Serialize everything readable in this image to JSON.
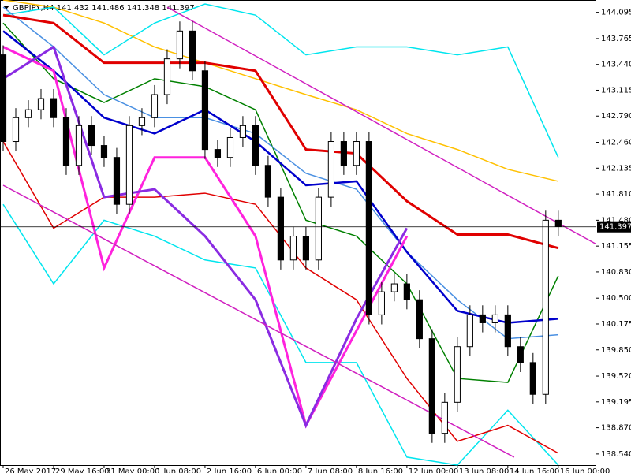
{
  "chart_data": {
    "type": "candlestick",
    "title": "GBPJPY,H4 141.432 141.486 141.348 141.397",
    "xlim": [
      -0.5,
      93.9
    ],
    "ylim": [
      138.4,
      144.25
    ],
    "yticks": [
      144.095,
      143.765,
      {
        "value": 143.44,
        "label": "143.440"
      },
      143.115,
      {
        "value": 142.79,
        "label": "142.790"
      },
      {
        "value": 142.46,
        "label": "142.460"
      },
      142.135,
      {
        "value": 141.81,
        "label": "141.810"
      },
      {
        "value": 141.48,
        "label": "141.480"
      },
      141.155,
      {
        "value": 140.83,
        "label": "140.830"
      },
      {
        "value": 140.5,
        "label": "140.500"
      },
      140.175,
      {
        "value": 139.85,
        "label": "139.850"
      },
      {
        "value": 139.52,
        "label": "139.520"
      },
      139.195,
      {
        "value": 138.87,
        "label": "138.870"
      },
      {
        "value": 138.54,
        "label": "138.540"
      }
    ],
    "xticks": [
      {
        "value": 0,
        "label": "26 May 2017"
      },
      {
        "value": 8,
        "label": "29 May 16:00"
      },
      {
        "value": 16,
        "label": "31 May 00:00"
      },
      {
        "value": 24,
        "label": "1 Jun 08:00"
      },
      {
        "value": 32,
        "label": "2 Jun 16:00"
      },
      {
        "value": 40,
        "label": "6 Jun 00:00"
      },
      {
        "value": 48,
        "label": "7 Jun 08:00"
      },
      {
        "value": 56,
        "label": "8 Jun 16:00"
      },
      {
        "value": 64,
        "label": "12 Jun 00:00"
      },
      {
        "value": 72,
        "label": "13 Jun 08:00"
      },
      {
        "value": 80,
        "label": "14 Jun 16:00"
      },
      {
        "value": 88,
        "label": "16 Jun 00:00"
      }
    ],
    "last_price": 141.397,
    "candles": {
      "x": [
        0,
        2,
        4,
        6,
        8,
        10,
        12,
        14,
        16,
        18,
        20,
        22,
        24,
        26,
        28,
        30,
        32,
        34,
        36,
        38,
        40,
        42,
        44,
        46,
        48,
        50,
        52,
        54,
        56,
        58,
        60,
        62,
        64,
        66,
        68,
        70,
        72,
        74,
        76,
        78,
        80,
        82,
        84,
        86,
        88
      ],
      "open": [
        143.56,
        142.47,
        142.77,
        142.87,
        143.01,
        142.77,
        142.17,
        142.67,
        142.42,
        142.27,
        141.68,
        142.67,
        142.77,
        143.06,
        143.51,
        143.86,
        143.36,
        142.37,
        142.27,
        142.52,
        142.67,
        142.17,
        141.77,
        140.98,
        141.28,
        140.98,
        141.77,
        142.47,
        142.17,
        142.47,
        140.29,
        140.58,
        140.68,
        140.48,
        139.99,
        138.8,
        139.19,
        139.89,
        140.29,
        140.19,
        140.29,
        139.89,
        139.69,
        139.29,
        141.48
      ],
      "high": [
        143.68,
        142.89,
        142.99,
        143.13,
        143.13,
        142.89,
        142.79,
        142.79,
        142.54,
        142.39,
        142.79,
        142.89,
        143.18,
        143.63,
        143.98,
        143.98,
        143.48,
        142.49,
        142.64,
        142.79,
        142.79,
        142.29,
        141.89,
        141.4,
        141.4,
        141.89,
        142.59,
        142.59,
        142.59,
        142.59,
        140.7,
        140.8,
        140.8,
        140.6,
        140.11,
        139.31,
        140.01,
        140.41,
        140.41,
        140.41,
        140.41,
        140.01,
        139.81,
        141.6,
        141.6
      ],
      "low": [
        142.35,
        142.35,
        142.65,
        142.75,
        142.65,
        142.05,
        142.05,
        142.3,
        142.15,
        141.56,
        141.56,
        142.55,
        142.65,
        142.94,
        143.39,
        143.24,
        142.25,
        142.15,
        142.15,
        142.4,
        142.05,
        141.65,
        140.86,
        140.86,
        140.86,
        140.86,
        141.65,
        142.05,
        142.05,
        140.17,
        140.17,
        140.46,
        140.36,
        139.87,
        138.68,
        138.68,
        139.07,
        139.77,
        140.07,
        140.07,
        139.77,
        139.57,
        139.17,
        139.17,
        141.28
      ],
      "close": [
        142.47,
        142.77,
        142.87,
        143.01,
        142.77,
        142.17,
        142.67,
        142.42,
        142.27,
        141.68,
        142.67,
        142.77,
        143.06,
        143.51,
        143.86,
        143.36,
        142.37,
        142.27,
        142.52,
        142.67,
        142.17,
        141.77,
        140.98,
        141.28,
        140.98,
        141.77,
        142.47,
        142.17,
        142.47,
        140.29,
        140.58,
        140.68,
        140.48,
        139.99,
        138.8,
        139.19,
        139.89,
        140.29,
        140.19,
        140.29,
        139.89,
        139.69,
        139.29,
        141.48,
        141.4
      ]
    },
    "lines": [
      {
        "color": "#ffc000",
        "width": 1.5,
        "x": [
          0,
          8,
          16,
          24,
          32,
          40,
          48,
          56,
          64,
          72,
          80,
          88
        ],
        "values": [
          144.25,
          144.16,
          143.96,
          143.66,
          143.46,
          143.26,
          143.06,
          142.87,
          142.57,
          142.37,
          142.12,
          141.97
        ]
      },
      {
        "color": "#00e5ee",
        "width": 1.5,
        "x": [
          0,
          8,
          16,
          24,
          32,
          40,
          48,
          56,
          64,
          72,
          80,
          88
        ],
        "values": [
          144.06,
          144.16,
          143.56,
          143.96,
          144.2,
          144.06,
          143.56,
          143.66,
          143.66,
          143.56,
          143.66,
          142.27
        ]
      },
      {
        "color": "#00e5ee",
        "width": 1.5,
        "x": [
          0,
          8,
          16,
          24,
          32,
          40,
          48,
          56,
          64,
          72,
          80,
          88
        ],
        "values": [
          141.68,
          140.68,
          141.48,
          141.28,
          140.98,
          140.88,
          139.69,
          139.69,
          138.5,
          138.4,
          139.09,
          138.4
        ]
      },
      {
        "color": "#e00000",
        "width": 1.5,
        "x": [
          0,
          8,
          16,
          24,
          32,
          40,
          48,
          56,
          64,
          72,
          80,
          88
        ],
        "values": [
          142.47,
          141.38,
          141.77,
          141.77,
          141.82,
          141.68,
          140.88,
          140.48,
          139.49,
          138.7,
          138.9,
          138.55
        ]
      },
      {
        "color": "#008000",
        "width": 1.5,
        "x": [
          0,
          8,
          16,
          24,
          32,
          40,
          48,
          56,
          64,
          72,
          80,
          88
        ],
        "values": [
          143.96,
          143.26,
          142.96,
          143.26,
          143.16,
          142.87,
          141.48,
          141.28,
          140.68,
          139.49,
          139.44,
          140.78
        ]
      },
      {
        "color": "#4a90e2",
        "width": 1.5,
        "x": [
          0,
          8,
          16,
          24,
          32,
          40,
          48,
          56,
          64,
          72,
          80,
          88
        ],
        "values": [
          144.16,
          143.66,
          143.06,
          142.77,
          142.77,
          142.57,
          142.07,
          141.87,
          141.08,
          140.48,
          139.99,
          140.04
        ]
      },
      {
        "color": "#0000cc",
        "width": 2.5,
        "x": [
          0,
          8,
          16,
          24,
          32,
          40,
          48,
          56,
          64,
          72,
          80,
          88
        ],
        "values": [
          143.86,
          143.36,
          142.77,
          142.57,
          142.87,
          142.47,
          141.92,
          141.97,
          141.08,
          140.34,
          140.19,
          140.24
        ]
      },
      {
        "color": "#e00000",
        "width": 3,
        "x": [
          0,
          8,
          16,
          24,
          32,
          40,
          48,
          56,
          64,
          72,
          80,
          88
        ],
        "values": [
          144.06,
          143.96,
          143.46,
          143.46,
          143.46,
          143.36,
          142.37,
          142.32,
          141.72,
          141.3,
          141.3,
          141.13
        ]
      },
      {
        "color": "#ff22dd",
        "width": 3,
        "x": [
          0,
          8,
          16,
          24,
          32,
          40,
          48,
          56,
          64
        ],
        "values": [
          143.66,
          143.36,
          140.88,
          142.27,
          142.27,
          141.28,
          138.9,
          140.09,
          141.28
        ]
      },
      {
        "color": "#8a2be2",
        "width": 3,
        "x": [
          0,
          8,
          16,
          24,
          32,
          40,
          48,
          56,
          64
        ],
        "values": [
          143.26,
          143.66,
          141.77,
          141.87,
          141.28,
          140.48,
          138.9,
          140.24,
          141.38
        ]
      },
      {
        "color": "#d020c0",
        "width": 1.5,
        "x": [
          26,
          94
        ],
        "values": [
          144.16,
          141.18
        ]
      },
      {
        "color": "#d020c0",
        "width": 1.5,
        "x": [
          0,
          81
        ],
        "values": [
          141.92,
          138.5
        ]
      }
    ]
  }
}
